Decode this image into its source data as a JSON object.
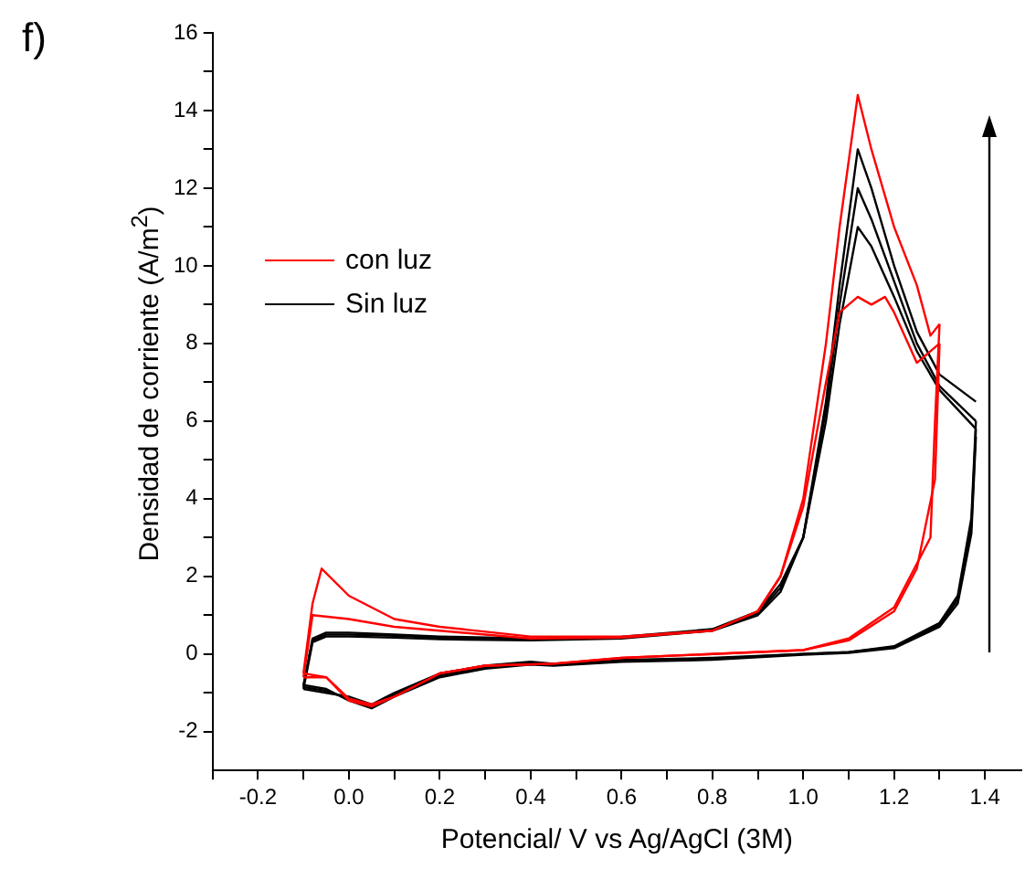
{
  "chart_data": {
    "type": "line",
    "xlabel": "Potencial/ V vs Ag/AgCl (3M)",
    "ylabel": "Densidad de corriente (A/m$^{2}$)",
    "annotations": [
      "f)"
    ],
    "legend": "top left",
    "grid": false,
    "marker": "none",
    "line_style": "solid",
    "xlim": [
      -0.3,
      1.48
    ],
    "ylim": [
      -3,
      16
    ],
    "xticks": [
      {
        "value": -0.3,
        "label": null
      },
      -0.2,
      {
        "value": -0.1,
        "label": null
      },
      {
        "value": 0,
        "label": "0.0"
      },
      {
        "value": 0.1,
        "label": null
      },
      0.2,
      {
        "value": 0.3,
        "label": null
      },
      0.4,
      {
        "value": 0.5,
        "label": null
      },
      0.6,
      {
        "value": 0.7,
        "label": null
      },
      0.8,
      {
        "value": 0.9,
        "label": null
      },
      {
        "value": 1,
        "label": "1.0"
      },
      {
        "value": 1.1,
        "label": null
      },
      1.2,
      {
        "value": 1.3,
        "label": null
      },
      1.4
    ],
    "yticks": [
      -2,
      {
        "value": -1,
        "label": null
      },
      0,
      {
        "value": 1,
        "label": null
      },
      2,
      {
        "value": 3,
        "label": null
      },
      4,
      {
        "value": 5,
        "label": null
      },
      6,
      {
        "value": 7,
        "label": null
      },
      8,
      {
        "value": 9,
        "label": null
      },
      10,
      {
        "value": 11,
        "label": null
      },
      12,
      {
        "value": 13,
        "label": null
      },
      14,
      {
        "value": 15,
        "label": null
      },
      16
    ],
    "series": [
      {
        "name": "con luz",
        "color": "#ff0000",
        "x": [
          -0.1,
          -0.08,
          -0.06,
          0,
          0.1,
          0.2,
          0.4,
          0.6,
          0.8,
          0.9,
          0.95,
          1,
          1.05,
          1.08,
          1.12,
          1.15,
          1.2,
          1.25,
          1.28,
          1.3
        ],
        "values": [
          -0.5,
          1.3,
          2.2,
          1.5,
          0.9,
          0.7,
          0.45,
          0.45,
          0.6,
          1.1,
          2,
          4,
          8,
          11,
          14.4,
          13,
          11,
          9.5,
          8.2,
          8.5
        ]
      },
      {
        "color": "#ff0000",
        "x": [
          1.3,
          1.29,
          1.28,
          1.2,
          1.1,
          1,
          0.8,
          0.6,
          0.45,
          0.3,
          0.2,
          0.1,
          0.05,
          0,
          -0.05,
          -0.1
        ],
        "values": [
          8.5,
          6,
          3,
          1.2,
          0.4,
          0.1,
          0,
          -0.1,
          -0.25,
          -0.3,
          -0.5,
          -1.1,
          -1.35,
          -1.2,
          -0.6,
          -0.5
        ]
      },
      {
        "color": "#ff0000",
        "x": [
          -0.1,
          -0.08,
          0,
          0.1,
          0.2,
          0.4,
          0.6,
          0.8,
          0.9,
          0.95,
          1,
          1.05,
          1.08,
          1.12,
          1.15,
          1.18,
          1.2,
          1.25,
          1.3
        ],
        "values": [
          -0.6,
          1,
          0.9,
          0.7,
          0.6,
          0.4,
          0.42,
          0.6,
          1.1,
          2,
          3.8,
          7,
          8.8,
          9.2,
          9,
          9.2,
          8.8,
          7.5,
          8
        ]
      },
      {
        "color": "#ff0000",
        "x": [
          1.3,
          1.29,
          1.25,
          1.2,
          1.1,
          1,
          0.8,
          0.6,
          0.45,
          0.3,
          0.2,
          0.1,
          0.05,
          0,
          -0.05,
          -0.1
        ],
        "values": [
          8,
          4.5,
          2.2,
          1.1,
          0.35,
          0.1,
          0,
          -0.1,
          -0.25,
          -0.3,
          -0.5,
          -1.1,
          -1.3,
          -1.15,
          -0.6,
          -0.6
        ]
      },
      {
        "name": "Sin luz",
        "color": "#000000",
        "x": [
          -0.1,
          -0.08,
          -0.05,
          0,
          0.1,
          0.2,
          0.4,
          0.6,
          0.8,
          0.9,
          0.95,
          1,
          1.05,
          1.08,
          1.12,
          1.15,
          1.2,
          1.25,
          1.3,
          1.38
        ],
        "values": [
          -0.9,
          0.3,
          0.45,
          0.45,
          0.42,
          0.38,
          0.35,
          0.4,
          0.6,
          1,
          1.6,
          3,
          6.5,
          9.5,
          13,
          12,
          10,
          8.3,
          7.2,
          6.5
        ]
      },
      {
        "color": "#000000",
        "x": [
          1.38,
          1.37,
          1.34,
          1.3,
          1.2,
          1.1,
          1,
          0.8,
          0.6,
          0.45,
          0.4,
          0.3,
          0.2,
          0.1,
          0.05,
          0,
          -0.05,
          -0.1
        ],
        "values": [
          6,
          3.5,
          1.5,
          0.8,
          0.2,
          0.05,
          0,
          -0.1,
          -0.15,
          -0.25,
          -0.2,
          -0.3,
          -0.5,
          -1,
          -1.3,
          -1.1,
          -1,
          -0.9
        ]
      },
      {
        "color": "#000000",
        "x": [
          -0.1,
          -0.08,
          -0.05,
          0,
          0.1,
          0.2,
          0.4,
          0.6,
          0.8,
          0.9,
          0.95,
          1,
          1.05,
          1.08,
          1.12,
          1.15,
          1.2,
          1.25,
          1.3,
          1.38
        ],
        "values": [
          -0.85,
          0.35,
          0.5,
          0.5,
          0.47,
          0.42,
          0.38,
          0.42,
          0.62,
          1.05,
          1.7,
          3,
          6.3,
          9,
          12,
          11.2,
          9.6,
          8,
          6.9,
          6
        ]
      },
      {
        "color": "#000000",
        "x": [
          1.38,
          1.37,
          1.34,
          1.3,
          1.2,
          1.1,
          1,
          0.8,
          0.6,
          0.45,
          0.4,
          0.3,
          0.2,
          0.1,
          0.05,
          0,
          -0.05,
          -0.1
        ],
        "values": [
          5.8,
          3.3,
          1.4,
          0.75,
          0.18,
          0.05,
          0,
          -0.12,
          -0.18,
          -0.28,
          -0.24,
          -0.35,
          -0.55,
          -1.05,
          -1.35,
          -1.15,
          -0.95,
          -0.85
        ]
      },
      {
        "color": "#000000",
        "x": [
          -0.1,
          -0.08,
          -0.05,
          0,
          0.1,
          0.2,
          0.4,
          0.6,
          0.8,
          0.9,
          0.95,
          1,
          1.05,
          1.08,
          1.12,
          1.15,
          1.2,
          1.25,
          1.3,
          1.38
        ],
        "values": [
          -0.8,
          0.4,
          0.55,
          0.55,
          0.5,
          0.45,
          0.4,
          0.44,
          0.64,
          1.1,
          1.8,
          3,
          6,
          8.5,
          11,
          10.5,
          9.2,
          7.8,
          6.8,
          5.8
        ]
      },
      {
        "color": "#000000",
        "x": [
          1.38,
          1.37,
          1.34,
          1.3,
          1.2,
          1.1,
          1,
          0.8,
          0.6,
          0.45,
          0.4,
          0.3,
          0.2,
          0.1,
          0.05,
          0,
          -0.05,
          -0.1
        ],
        "values": [
          5.6,
          3.1,
          1.3,
          0.7,
          0.15,
          0.03,
          -0.02,
          -0.15,
          -0.2,
          -0.3,
          -0.27,
          -0.38,
          -0.6,
          -1.1,
          -1.4,
          -1.2,
          -0.9,
          -0.8
        ]
      }
    ]
  }
}
